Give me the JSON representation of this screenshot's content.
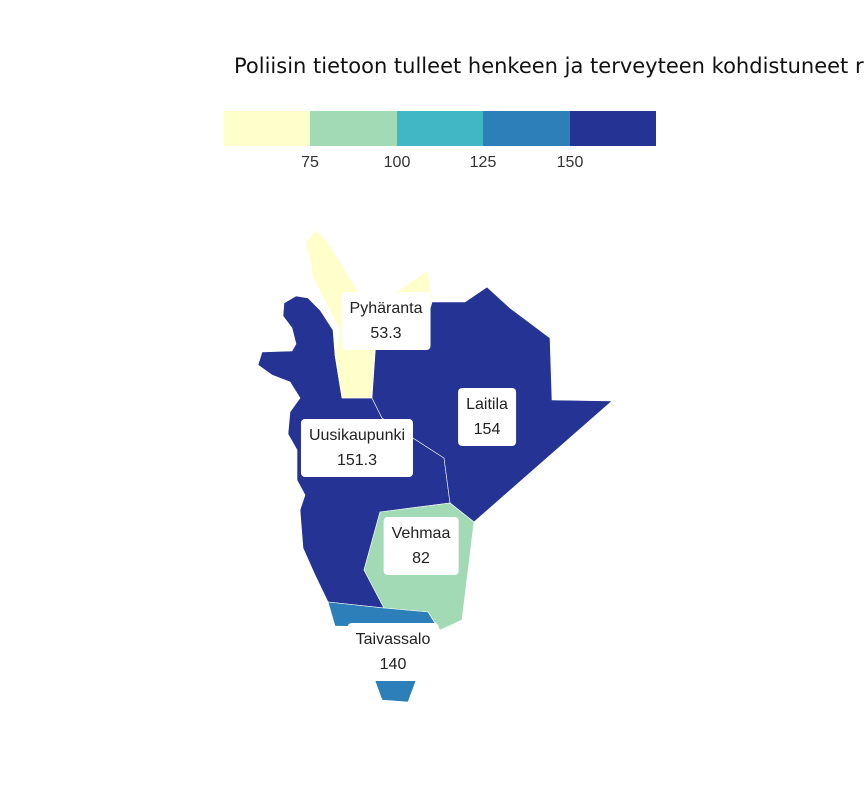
{
  "title": "Poliisin tietoon tulleet henkeen ja terveyteen kohdistuneet ri",
  "legend": {
    "colors": [
      "#ffffcc",
      "#a1dab4",
      "#41b6c4",
      "#2c7fb8",
      "#253494"
    ],
    "ticks": [
      "75",
      "100",
      "125",
      "150"
    ]
  },
  "regions": [
    {
      "name": "Pyhäranta",
      "value": "53.3",
      "color": "#ffffcc"
    },
    {
      "name": "Laitila",
      "value": "154",
      "color": "#253494"
    },
    {
      "name": "Uusikaupunki",
      "value": "151.3",
      "color": "#253494"
    },
    {
      "name": "Vehmaa",
      "value": "82",
      "color": "#a1dab4"
    },
    {
      "name": "Taivassalo",
      "value": "140",
      "color": "#2c7fb8"
    }
  ]
}
